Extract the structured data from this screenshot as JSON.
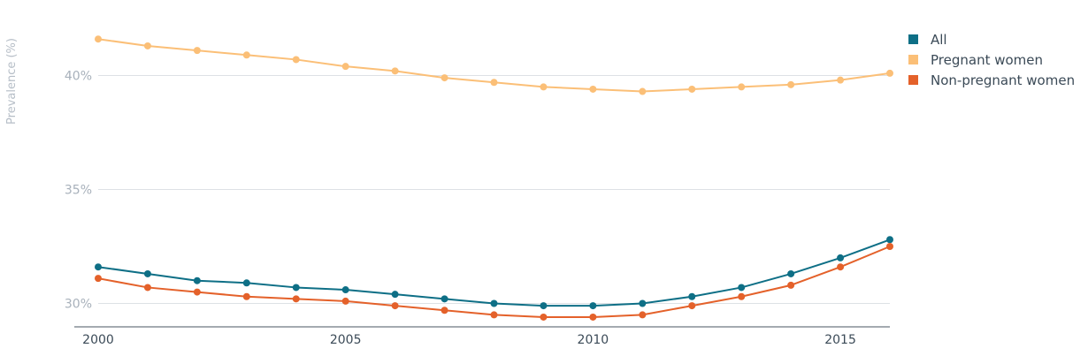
{
  "chart_data": {
    "type": "line",
    "ylabel": "Prevalence (%)",
    "xlim": [
      2000,
      2016
    ],
    "ylim": [
      29,
      42
    ],
    "x_ticks": [
      2000,
      2005,
      2010,
      2015
    ],
    "x_tick_labels": [
      "2000",
      "2005",
      "2010",
      "2015"
    ],
    "y_ticks": [
      30,
      35,
      40
    ],
    "y_tick_labels": [
      "30%",
      "35%",
      "40%"
    ],
    "grid": "horizontal",
    "legend_position": "top-right",
    "x": [
      2000,
      2001,
      2002,
      2003,
      2004,
      2005,
      2006,
      2007,
      2008,
      2009,
      2010,
      2011,
      2012,
      2013,
      2014,
      2015,
      2016
    ],
    "series": [
      {
        "name": "All",
        "color": "#0e6f86",
        "values": [
          31.6,
          31.3,
          31.0,
          30.9,
          30.7,
          30.6,
          30.4,
          30.2,
          30.0,
          29.9,
          29.9,
          30.0,
          30.3,
          30.7,
          31.3,
          32.0,
          32.8
        ]
      },
      {
        "name": "Pregnant women",
        "color": "#fbbf77",
        "values": [
          41.6,
          41.3,
          41.1,
          40.9,
          40.7,
          40.4,
          40.2,
          39.9,
          39.7,
          39.5,
          39.4,
          39.3,
          39.4,
          39.5,
          39.6,
          39.8,
          40.1
        ]
      },
      {
        "name": "Non-pregnant women",
        "color": "#e4612a",
        "values": [
          31.1,
          30.7,
          30.5,
          30.3,
          30.2,
          30.1,
          29.9,
          29.7,
          29.5,
          29.4,
          29.4,
          29.5,
          29.9,
          30.3,
          30.8,
          31.6,
          32.5
        ]
      }
    ]
  }
}
